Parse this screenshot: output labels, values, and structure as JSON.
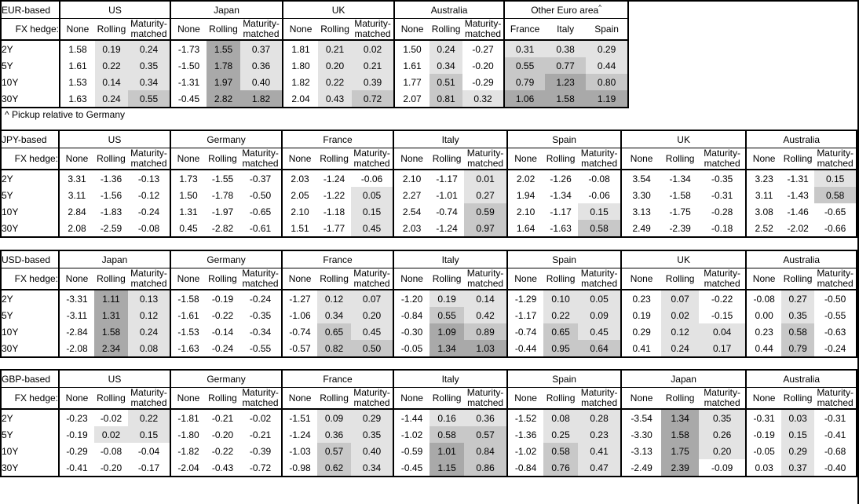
{
  "footnote": "^ Pickup relative to Germany",
  "shared": {
    "fx_hedge_label": "FX hedge:",
    "tenors": [
      "2Y",
      "5Y",
      "10Y",
      "30Y"
    ],
    "hedge_columns": [
      "None",
      "Rolling",
      "Maturity-matched"
    ]
  },
  "shading_legend": {
    "negative_or_unshaded": "#ffffff",
    "pickup_0_to_0.5": "#e3e3e3",
    "pickup_0.5_to_1": "#c8c8c8",
    "pickup_over_1": "#a9a9a9"
  },
  "tables": [
    {
      "id": "eur",
      "base_label": "EUR-based",
      "groups": [
        {
          "name": "US",
          "columns": [
            "None",
            "Rolling",
            "Maturity-matched"
          ],
          "shade_columns": [
            false,
            true,
            true
          ],
          "rows": [
            [
              "1.58",
              "0.19",
              "0.24"
            ],
            [
              "1.61",
              "0.22",
              "0.35"
            ],
            [
              "1.53",
              "0.14",
              "0.34"
            ],
            [
              "1.63",
              "0.24",
              "0.55"
            ]
          ]
        },
        {
          "name": "Japan",
          "columns": [
            "None",
            "Rolling",
            "Maturity-matched"
          ],
          "shade_columns": [
            false,
            true,
            true
          ],
          "rows": [
            [
              "-1.73",
              "1.55",
              "0.37"
            ],
            [
              "-1.50",
              "1.78",
              "0.36"
            ],
            [
              "-1.31",
              "1.97",
              "0.40"
            ],
            [
              "-0.45",
              "2.82",
              "1.82"
            ]
          ]
        },
        {
          "name": "UK",
          "columns": [
            "None",
            "Rolling",
            "Maturity-matched"
          ],
          "shade_columns": [
            false,
            true,
            true
          ],
          "rows": [
            [
              "1.81",
              "0.21",
              "0.02"
            ],
            [
              "1.80",
              "0.20",
              "0.21"
            ],
            [
              "1.82",
              "0.22",
              "0.39"
            ],
            [
              "2.04",
              "0.43",
              "0.72"
            ]
          ]
        },
        {
          "name": "Australia",
          "columns": [
            "None",
            "Rolling",
            "Maturity-matched"
          ],
          "shade_columns": [
            false,
            true,
            true
          ],
          "rows": [
            [
              "1.50",
              "0.24",
              "-0.27"
            ],
            [
              "1.61",
              "0.34",
              "-0.20"
            ],
            [
              "1.77",
              "0.51",
              "-0.29"
            ],
            [
              "2.07",
              "0.81",
              "0.32"
            ]
          ]
        },
        {
          "name": "Other Euro area",
          "superscript": "^",
          "columns": [
            "France",
            "Italy",
            "Spain"
          ],
          "shade_columns": [
            true,
            true,
            true
          ],
          "rows": [
            [
              "0.31",
              "0.38",
              "0.29"
            ],
            [
              "0.55",
              "0.77",
              "0.44"
            ],
            [
              "0.79",
              "1.23",
              "0.80"
            ],
            [
              "1.06",
              "1.58",
              "1.19"
            ]
          ]
        }
      ]
    },
    {
      "id": "jpy",
      "base_label": "JPY-based",
      "groups": [
        {
          "name": "US",
          "columns": [
            "None",
            "Rolling",
            "Maturity-matched"
          ],
          "shade_columns": [
            false,
            true,
            true
          ],
          "rows": [
            [
              "3.31",
              "-1.36",
              "-0.13"
            ],
            [
              "3.11",
              "-1.56",
              "-0.12"
            ],
            [
              "2.84",
              "-1.83",
              "-0.24"
            ],
            [
              "2.08",
              "-2.59",
              "-0.08"
            ]
          ]
        },
        {
          "name": "Germany",
          "columns": [
            "None",
            "Rolling",
            "Maturity-matched"
          ],
          "shade_columns": [
            false,
            true,
            true
          ],
          "rows": [
            [
              "1.73",
              "-1.55",
              "-0.37"
            ],
            [
              "1.50",
              "-1.78",
              "-0.50"
            ],
            [
              "1.31",
              "-1.97",
              "-0.65"
            ],
            [
              "0.45",
              "-2.82",
              "-0.61"
            ]
          ]
        },
        {
          "name": "France",
          "columns": [
            "None",
            "Rolling",
            "Maturity-matched"
          ],
          "shade_columns": [
            false,
            true,
            true
          ],
          "rows": [
            [
              "2.03",
              "-1.24",
              "-0.06"
            ],
            [
              "2.05",
              "-1.22",
              "0.05"
            ],
            [
              "2.10",
              "-1.18",
              "0.15"
            ],
            [
              "1.51",
              "-1.77",
              "0.45"
            ]
          ]
        },
        {
          "name": "Italy",
          "columns": [
            "None",
            "Rolling",
            "Maturity-matched"
          ],
          "shade_columns": [
            false,
            true,
            true
          ],
          "rows": [
            [
              "2.10",
              "-1.17",
              "0.01"
            ],
            [
              "2.27",
              "-1.01",
              "0.27"
            ],
            [
              "2.54",
              "-0.74",
              "0.59"
            ],
            [
              "2.03",
              "-1.24",
              "0.97"
            ]
          ]
        },
        {
          "name": "Spain",
          "columns": [
            "None",
            "Rolling",
            "Maturity-matched"
          ],
          "shade_columns": [
            false,
            true,
            true
          ],
          "rows": [
            [
              "2.02",
              "-1.26",
              "-0.08"
            ],
            [
              "1.94",
              "-1.34",
              "-0.06"
            ],
            [
              "2.10",
              "-1.17",
              "0.15"
            ],
            [
              "1.64",
              "-1.63",
              "0.58"
            ]
          ]
        },
        {
          "name": "UK",
          "columns": [
            "None",
            "Rolling",
            "Maturity-matched"
          ],
          "shade_columns": [
            false,
            true,
            true
          ],
          "rows": [
            [
              "3.54",
              "-1.34",
              "-0.35"
            ],
            [
              "3.30",
              "-1.58",
              "-0.31"
            ],
            [
              "3.13",
              "-1.75",
              "-0.28"
            ],
            [
              "2.49",
              "-2.39",
              "-0.18"
            ]
          ]
        },
        {
          "name": "Australia",
          "columns": [
            "None",
            "Rolling",
            "Maturity-matched"
          ],
          "shade_columns": [
            false,
            true,
            true
          ],
          "rows": [
            [
              "3.23",
              "-1.31",
              "0.15"
            ],
            [
              "3.11",
              "-1.43",
              "0.58"
            ],
            [
              "3.08",
              "-1.46",
              "-0.65"
            ],
            [
              "2.52",
              "-2.02",
              "-0.66"
            ]
          ]
        }
      ]
    },
    {
      "id": "usd",
      "base_label": "USD-based",
      "groups": [
        {
          "name": "Japan",
          "columns": [
            "None",
            "Rolling",
            "Maturity-matched"
          ],
          "shade_columns": [
            false,
            true,
            true
          ],
          "rows": [
            [
              "-3.31",
              "1.11",
              "0.13"
            ],
            [
              "-3.11",
              "1.31",
              "0.12"
            ],
            [
              "-2.84",
              "1.58",
              "0.24"
            ],
            [
              "-2.08",
              "2.34",
              "0.08"
            ]
          ]
        },
        {
          "name": "Germany",
          "columns": [
            "None",
            "Rolling",
            "Maturity-matched"
          ],
          "shade_columns": [
            false,
            true,
            true
          ],
          "rows": [
            [
              "-1.58",
              "-0.19",
              "-0.24"
            ],
            [
              "-1.61",
              "-0.22",
              "-0.35"
            ],
            [
              "-1.53",
              "-0.14",
              "-0.34"
            ],
            [
              "-1.63",
              "-0.24",
              "-0.55"
            ]
          ]
        },
        {
          "name": "France",
          "columns": [
            "None",
            "Rolling",
            "Maturity-matched"
          ],
          "shade_columns": [
            false,
            true,
            true
          ],
          "rows": [
            [
              "-1.27",
              "0.12",
              "0.07"
            ],
            [
              "-1.06",
              "0.34",
              "0.20"
            ],
            [
              "-0.74",
              "0.65",
              "0.45"
            ],
            [
              "-0.57",
              "0.82",
              "0.50"
            ]
          ]
        },
        {
          "name": "Italy",
          "columns": [
            "None",
            "Rolling",
            "Maturity-matched"
          ],
          "shade_columns": [
            false,
            true,
            true
          ],
          "rows": [
            [
              "-1.20",
              "0.19",
              "0.14"
            ],
            [
              "-0.84",
              "0.55",
              "0.42"
            ],
            [
              "-0.30",
              "1.09",
              "0.89"
            ],
            [
              "-0.05",
              "1.34",
              "1.03"
            ]
          ]
        },
        {
          "name": "Spain",
          "columns": [
            "None",
            "Rolling",
            "Maturity-matched"
          ],
          "shade_columns": [
            false,
            true,
            true
          ],
          "rows": [
            [
              "-1.29",
              "0.10",
              "0.05"
            ],
            [
              "-1.17",
              "0.22",
              "0.09"
            ],
            [
              "-0.74",
              "0.65",
              "0.45"
            ],
            [
              "-0.44",
              "0.95",
              "0.64"
            ]
          ]
        },
        {
          "name": "UK",
          "columns": [
            "None",
            "Rolling",
            "Maturity-matched"
          ],
          "shade_columns": [
            false,
            true,
            true
          ],
          "rows": [
            [
              "0.23",
              "0.07",
              "-0.22"
            ],
            [
              "0.19",
              "0.02",
              "-0.15"
            ],
            [
              "0.29",
              "0.12",
              "0.04"
            ],
            [
              "0.41",
              "0.24",
              "0.17"
            ]
          ]
        },
        {
          "name": "Australia",
          "columns": [
            "None",
            "Rolling",
            "Maturity-matched"
          ],
          "shade_columns": [
            false,
            true,
            true
          ],
          "rows": [
            [
              "-0.08",
              "0.27",
              "-0.50"
            ],
            [
              "0.00",
              "0.35",
              "-0.55"
            ],
            [
              "0.23",
              "0.58",
              "-0.63"
            ],
            [
              "0.44",
              "0.79",
              "-0.24"
            ]
          ]
        }
      ]
    },
    {
      "id": "gbp",
      "base_label": "GBP-based",
      "groups": [
        {
          "name": "US",
          "columns": [
            "None",
            "Rolling",
            "Maturity-matched"
          ],
          "shade_columns": [
            false,
            true,
            true
          ],
          "rows": [
            [
              "-0.23",
              "-0.02",
              "0.22"
            ],
            [
              "-0.19",
              "0.02",
              "0.15"
            ],
            [
              "-0.29",
              "-0.08",
              "-0.04"
            ],
            [
              "-0.41",
              "-0.20",
              "-0.17"
            ]
          ]
        },
        {
          "name": "Germany",
          "columns": [
            "None",
            "Rolling",
            "Maturity-matched"
          ],
          "shade_columns": [
            false,
            true,
            true
          ],
          "rows": [
            [
              "-1.81",
              "-0.21",
              "-0.02"
            ],
            [
              "-1.80",
              "-0.20",
              "-0.21"
            ],
            [
              "-1.82",
              "-0.22",
              "-0.39"
            ],
            [
              "-2.04",
              "-0.43",
              "-0.72"
            ]
          ]
        },
        {
          "name": "France",
          "columns": [
            "None",
            "Rolling",
            "Maturity-matched"
          ],
          "shade_columns": [
            false,
            true,
            true
          ],
          "rows": [
            [
              "-1.51",
              "0.09",
              "0.29"
            ],
            [
              "-1.24",
              "0.36",
              "0.35"
            ],
            [
              "-1.03",
              "0.57",
              "0.40"
            ],
            [
              "-0.98",
              "0.62",
              "0.34"
            ]
          ]
        },
        {
          "name": "Italy",
          "columns": [
            "None",
            "Rolling",
            "Maturity-matched"
          ],
          "shade_columns": [
            false,
            true,
            true
          ],
          "rows": [
            [
              "-1.44",
              "0.16",
              "0.36"
            ],
            [
              "-1.02",
              "0.58",
              "0.57"
            ],
            [
              "-0.59",
              "1.01",
              "0.84"
            ],
            [
              "-0.45",
              "1.15",
              "0.86"
            ]
          ]
        },
        {
          "name": "Spain",
          "columns": [
            "None",
            "Rolling",
            "Maturity-matched"
          ],
          "shade_columns": [
            false,
            true,
            true
          ],
          "rows": [
            [
              "-1.52",
              "0.08",
              "0.28"
            ],
            [
              "-1.36",
              "0.25",
              "0.23"
            ],
            [
              "-1.02",
              "0.58",
              "0.41"
            ],
            [
              "-0.84",
              "0.76",
              "0.47"
            ]
          ]
        },
        {
          "name": "Japan",
          "columns": [
            "None",
            "Rolling",
            "Maturity-matched"
          ],
          "shade_columns": [
            false,
            true,
            true
          ],
          "rows": [
            [
              "-3.54",
              "1.34",
              "0.35"
            ],
            [
              "-3.30",
              "1.58",
              "0.26"
            ],
            [
              "-3.13",
              "1.75",
              "0.20"
            ],
            [
              "-2.49",
              "2.39",
              "-0.09"
            ]
          ]
        },
        {
          "name": "Australia",
          "columns": [
            "None",
            "Rolling",
            "Maturity-matched"
          ],
          "shade_columns": [
            false,
            true,
            true
          ],
          "rows": [
            [
              "-0.31",
              "0.03",
              "-0.31"
            ],
            [
              "-0.19",
              "0.15",
              "-0.41"
            ],
            [
              "-0.05",
              "0.29",
              "-0.68"
            ],
            [
              "0.03",
              "0.37",
              "-0.40"
            ]
          ]
        }
      ]
    }
  ]
}
